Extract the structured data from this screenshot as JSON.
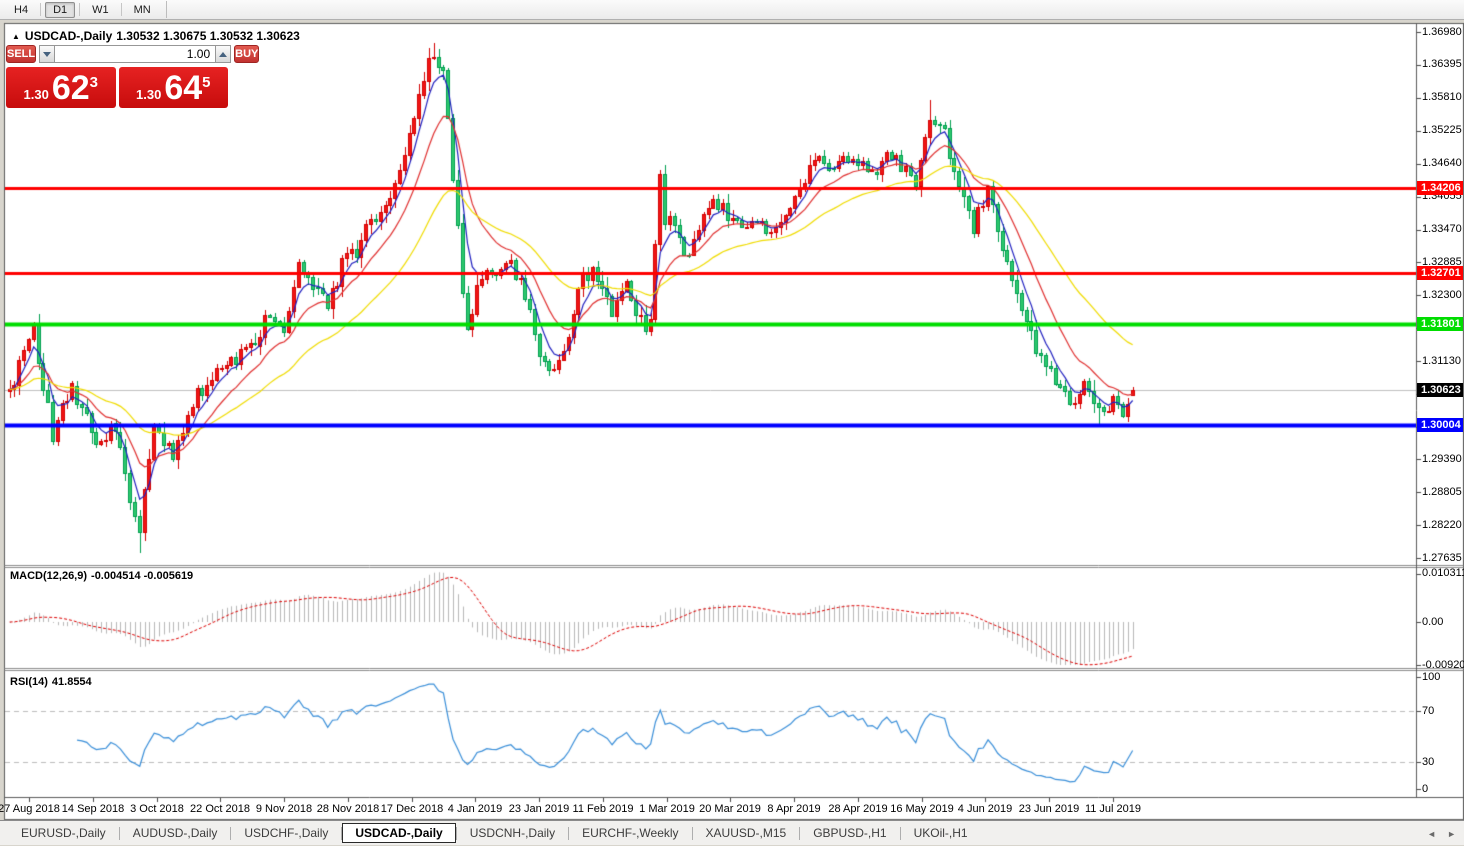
{
  "toolbar": {
    "timeframes": [
      {
        "label": "H4",
        "active": false
      },
      {
        "label": "D1",
        "active": true
      },
      {
        "label": "W1",
        "active": false
      },
      {
        "label": "MN",
        "active": false
      }
    ]
  },
  "chart": {
    "collapse_icon": "▲",
    "title_symbol": "USDCAD-,Daily",
    "title_ohlc": "1.30532 1.30675 1.30532 1.30623"
  },
  "trade_panel": {
    "sell_label": "SELL",
    "buy_label": "BUY",
    "volume_value": "1.00",
    "sell_price": {
      "prefix": "1.30",
      "big": "62",
      "sup": "3"
    },
    "buy_price": {
      "prefix": "1.30",
      "big": "64",
      "sup": "5"
    }
  },
  "colors": {
    "bull_body": "#f21616",
    "bull_wick": "#d40000",
    "bear_body": "#2fca6e",
    "bear_wick": "#00a050",
    "ma_fast": "#2020c0",
    "ma_mid": "#e03030",
    "ma_slow": "#f0dc00",
    "hline_red": "#ff0000",
    "hline_green": "#00dd00",
    "hline_blue": "#0000ff",
    "current_line": "#c0c0c0",
    "current_badge": "#000000",
    "macd_hist": "#b8b8b8",
    "macd_signal": "#dd0000",
    "rsi_line": "#3a8fd9",
    "rsi_levels": "#bbbbbb"
  },
  "chart_data": {
    "type": "candlestick",
    "symbol": "USDCAD-",
    "timeframe": "Daily",
    "ohlc_current": {
      "open": "1.30532",
      "high": "1.30675",
      "low": "1.30532",
      "close": "1.30623"
    },
    "x_tick_labels": [
      "27 Aug 2018",
      "14 Sep 2018",
      "3 Oct 2018",
      "22 Oct 2018",
      "9 Nov 2018",
      "28 Nov 2018",
      "17 Dec 2018",
      "4 Jan 2019",
      "23 Jan 2019",
      "11 Feb 2019",
      "1 Mar 2019",
      "20 Mar 2019",
      "8 Apr 2019",
      "28 Apr 2019",
      "16 May 2019",
      "4 Jun 2019",
      "23 Jun 2019",
      "11 Jul 2019"
    ],
    "y_tick_labels": [
      "1.36980",
      "1.36395",
      "1.35810",
      "1.35225",
      "1.34640",
      "1.34055",
      "1.33470",
      "1.32885",
      "1.32300",
      "1.31715",
      "1.31130",
      "1.30545",
      "1.29960",
      "1.29390",
      "1.28805",
      "1.28220",
      "1.27635"
    ],
    "y_range": {
      "top": 1.3698,
      "top_y": 32,
      "bottom": 1.27635,
      "bottom_y": 558
    },
    "num_bars": 234,
    "close_path": [
      [
        0,
        1.306
      ],
      [
        5,
        1.317
      ],
      [
        9,
        1.2985
      ],
      [
        13,
        1.307
      ],
      [
        18,
        1.2965
      ],
      [
        22,
        1.2995
      ],
      [
        24,
        1.29
      ],
      [
        27,
        1.2815
      ],
      [
        30,
        1.2995
      ],
      [
        34,
        1.2945
      ],
      [
        39,
        1.306
      ],
      [
        45,
        1.3105
      ],
      [
        51,
        1.314
      ],
      [
        54,
        1.32
      ],
      [
        57,
        1.3165
      ],
      [
        60,
        1.3285
      ],
      [
        63,
        1.3255
      ],
      [
        66,
        1.3215
      ],
      [
        69,
        1.3285
      ],
      [
        72,
        1.3305
      ],
      [
        75,
        1.336
      ],
      [
        78,
        1.3385
      ],
      [
        81,
        1.344
      ],
      [
        84,
        1.356
      ],
      [
        86,
        1.3625
      ],
      [
        88,
        1.3655
      ],
      [
        90,
        1.363
      ],
      [
        92,
        1.345
      ],
      [
        94,
        1.323
      ],
      [
        95,
        1.318
      ],
      [
        98,
        1.327
      ],
      [
        101,
        1.3265
      ],
      [
        104,
        1.3295
      ],
      [
        107,
        1.322
      ],
      [
        110,
        1.313
      ],
      [
        113,
        1.3095
      ],
      [
        116,
        1.315
      ],
      [
        119,
        1.327
      ],
      [
        122,
        1.327
      ],
      [
        125,
        1.3185
      ],
      [
        128,
        1.325
      ],
      [
        131,
        1.318
      ],
      [
        133,
        1.3185
      ],
      [
        134,
        1.331
      ],
      [
        135,
        1.3445
      ],
      [
        136,
        1.337
      ],
      [
        138,
        1.3365
      ],
      [
        140,
        1.329
      ],
      [
        143,
        1.335
      ],
      [
        146,
        1.34
      ],
      [
        149,
        1.337
      ],
      [
        152,
        1.3345
      ],
      [
        155,
        1.336
      ],
      [
        158,
        1.3335
      ],
      [
        161,
        1.3375
      ],
      [
        164,
        1.3415
      ],
      [
        167,
        1.348
      ],
      [
        170,
        1.3455
      ],
      [
        173,
        1.3475
      ],
      [
        176,
        1.3465
      ],
      [
        179,
        1.3445
      ],
      [
        182,
        1.348
      ],
      [
        185,
        1.3465
      ],
      [
        188,
        1.344
      ],
      [
        191,
        1.3535
      ],
      [
        194,
        1.3515
      ],
      [
        197,
        1.344
      ],
      [
        200,
        1.335
      ],
      [
        203,
        1.342
      ],
      [
        206,
        1.332
      ],
      [
        209,
        1.323
      ],
      [
        212,
        1.3155
      ],
      [
        215,
        1.311
      ],
      [
        218,
        1.306
      ],
      [
        221,
        1.303
      ],
      [
        223,
        1.308
      ],
      [
        225,
        1.303
      ],
      [
        227,
        1.3015
      ],
      [
        229,
        1.3055
      ],
      [
        231,
        1.302
      ],
      [
        232,
        1.305
      ],
      [
        233,
        1.30623
      ]
    ],
    "extremes": [
      {
        "i": 27,
        "low": 1.2772
      },
      {
        "i": 88,
        "high": 1.3678
      },
      {
        "i": 135,
        "high": 1.3452
      },
      {
        "i": 191,
        "high": 1.3578
      },
      {
        "i": 226,
        "low": 1.2997
      }
    ],
    "hlines": [
      {
        "value": 1.34206,
        "label": "1.34206",
        "color": "#ff0000",
        "width": 3
      },
      {
        "value": 1.32701,
        "label": "1.32701",
        "color": "#ff0000",
        "width": 3
      },
      {
        "value": 1.31801,
        "label": "1.31801",
        "color": "#00dd00",
        "width": 4
      },
      {
        "value": 1.30004,
        "label": "1.30004",
        "color": "#0000ff",
        "width": 4
      }
    ],
    "current_price": {
      "value": 1.30623,
      "label": "1.30623"
    },
    "moving_averages": [
      {
        "period": 5,
        "color": "#2020c0",
        "name": "fast-ma-blue"
      },
      {
        "period": 13,
        "color": "#e03030",
        "name": "mid-ma-red"
      },
      {
        "period": 34,
        "color": "#f0dc00",
        "name": "slow-ma-yellow"
      }
    ],
    "indicators": {
      "macd": {
        "label": "MACD(12,26,9)",
        "value_text": "-0.004514 -0.005619",
        "fast": 12,
        "slow": 26,
        "signal": 9,
        "axis_labels": [
          "0.010311",
          "0.00",
          "-0.009203"
        ],
        "axis_values": [
          0.010311,
          0,
          -0.009203
        ]
      },
      "rsi": {
        "label": "RSI(14)",
        "value_text": "41.8554",
        "period": 14,
        "axis_labels": [
          "100",
          "70",
          "30",
          "0"
        ],
        "axis_values": [
          100,
          70,
          30,
          0
        ],
        "levels": [
          70,
          30
        ]
      }
    }
  },
  "tabs": {
    "items": [
      {
        "label": "EURUSD-,Daily",
        "active": false
      },
      {
        "label": "AUDUSD-,Daily",
        "active": false
      },
      {
        "label": "USDCHF-,Daily",
        "active": false
      },
      {
        "label": "USDCAD-,Daily",
        "active": true
      },
      {
        "label": "USDCNH-,Daily",
        "active": false
      },
      {
        "label": "EURCHF-,Weekly",
        "active": false
      },
      {
        "label": "XAUUSD-,M15",
        "active": false
      },
      {
        "label": "GBPUSD-,H1",
        "active": false
      },
      {
        "label": "UKOil-,H1",
        "active": false
      }
    ],
    "scroll_left_icon": "◄",
    "scroll_right_icon": "►"
  }
}
